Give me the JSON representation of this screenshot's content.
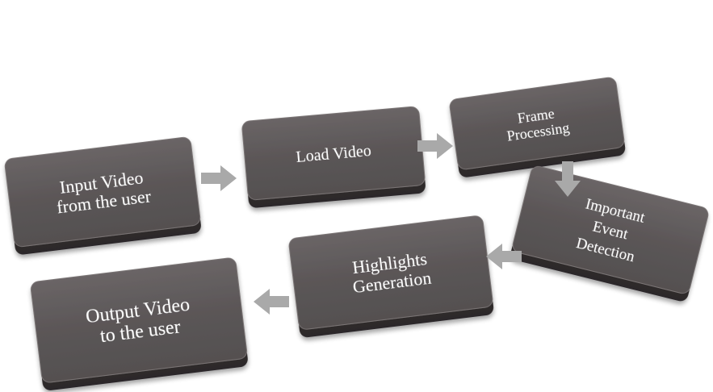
{
  "diagram": {
    "type": "flowchart",
    "colors": {
      "box_top": "#5b5657",
      "box_side": "#3a3536",
      "box_highlight": "#7a7475",
      "arrow": "#a9a9a9",
      "text": "#ffffff"
    },
    "steps": [
      {
        "id": "input",
        "lines": [
          "Input Video",
          "from the user"
        ]
      },
      {
        "id": "load",
        "lines": [
          "Load Video"
        ]
      },
      {
        "id": "frame",
        "lines": [
          "Frame",
          "Processing"
        ]
      },
      {
        "id": "event",
        "lines": [
          "Important",
          "Event",
          "Detection"
        ]
      },
      {
        "id": "highlights",
        "lines": [
          "Highlights",
          "Generation"
        ]
      },
      {
        "id": "output",
        "lines": [
          "Output Video",
          "to the user"
        ]
      }
    ],
    "connections": [
      {
        "from": "input",
        "to": "load",
        "direction": "right"
      },
      {
        "from": "load",
        "to": "frame",
        "direction": "right"
      },
      {
        "from": "frame",
        "to": "event",
        "direction": "down"
      },
      {
        "from": "event",
        "to": "highlights",
        "direction": "left"
      },
      {
        "from": "highlights",
        "to": "output",
        "direction": "left"
      }
    ]
  }
}
